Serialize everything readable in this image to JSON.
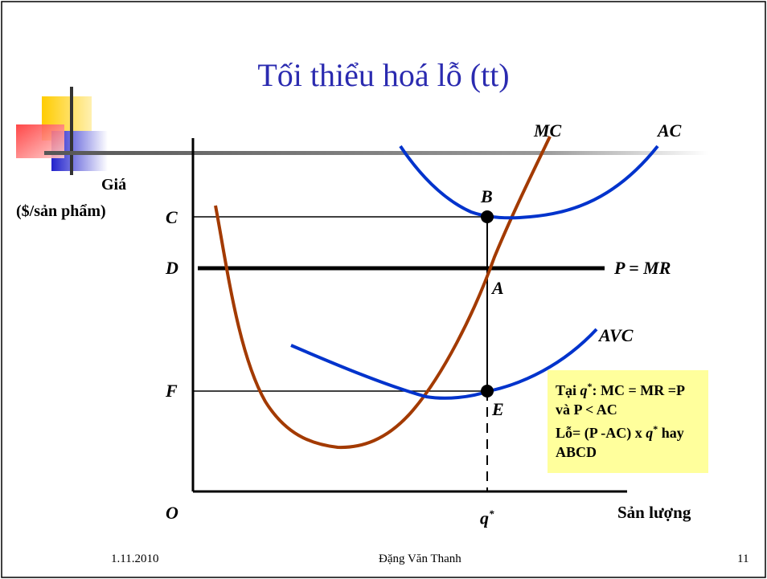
{
  "slide": {
    "title": "Tối thiểu hoá lỗ (tt)",
    "footer_date": "1.11.2010",
    "footer_author": "Đặng Văn Thanh",
    "footer_page": "11"
  },
  "diagram": {
    "y_axis_label_line1": "Giá",
    "y_axis_label_line2": "($/sản phẩm)",
    "x_axis_label": "Sản lượng",
    "origin": "O",
    "price_levels": [
      "C",
      "D",
      "F"
    ],
    "curves": [
      "MC",
      "AC",
      "AVC"
    ],
    "price_line": "P = MR",
    "points": [
      "B",
      "A",
      "E"
    ],
    "quantity": "q",
    "quantity_sup": "*",
    "colors": {
      "mc": "#a33a00",
      "ac": "#0033cc",
      "avc": "#0033cc",
      "title": "#2b2bb0",
      "note_bg": "#ffff9c"
    }
  },
  "note": {
    "line1_prefix": "Tại ",
    "line1_q": "q",
    "line1_sup": "*",
    "line1_rest": ": MC = MR =P",
    "line2": "và P < AC",
    "line3_prefix": "Lỗ= (P -AC) x ",
    "line3_q": "q",
    "line3_sup": "*",
    "line3_rest": " hay",
    "line4": "ABCD"
  }
}
